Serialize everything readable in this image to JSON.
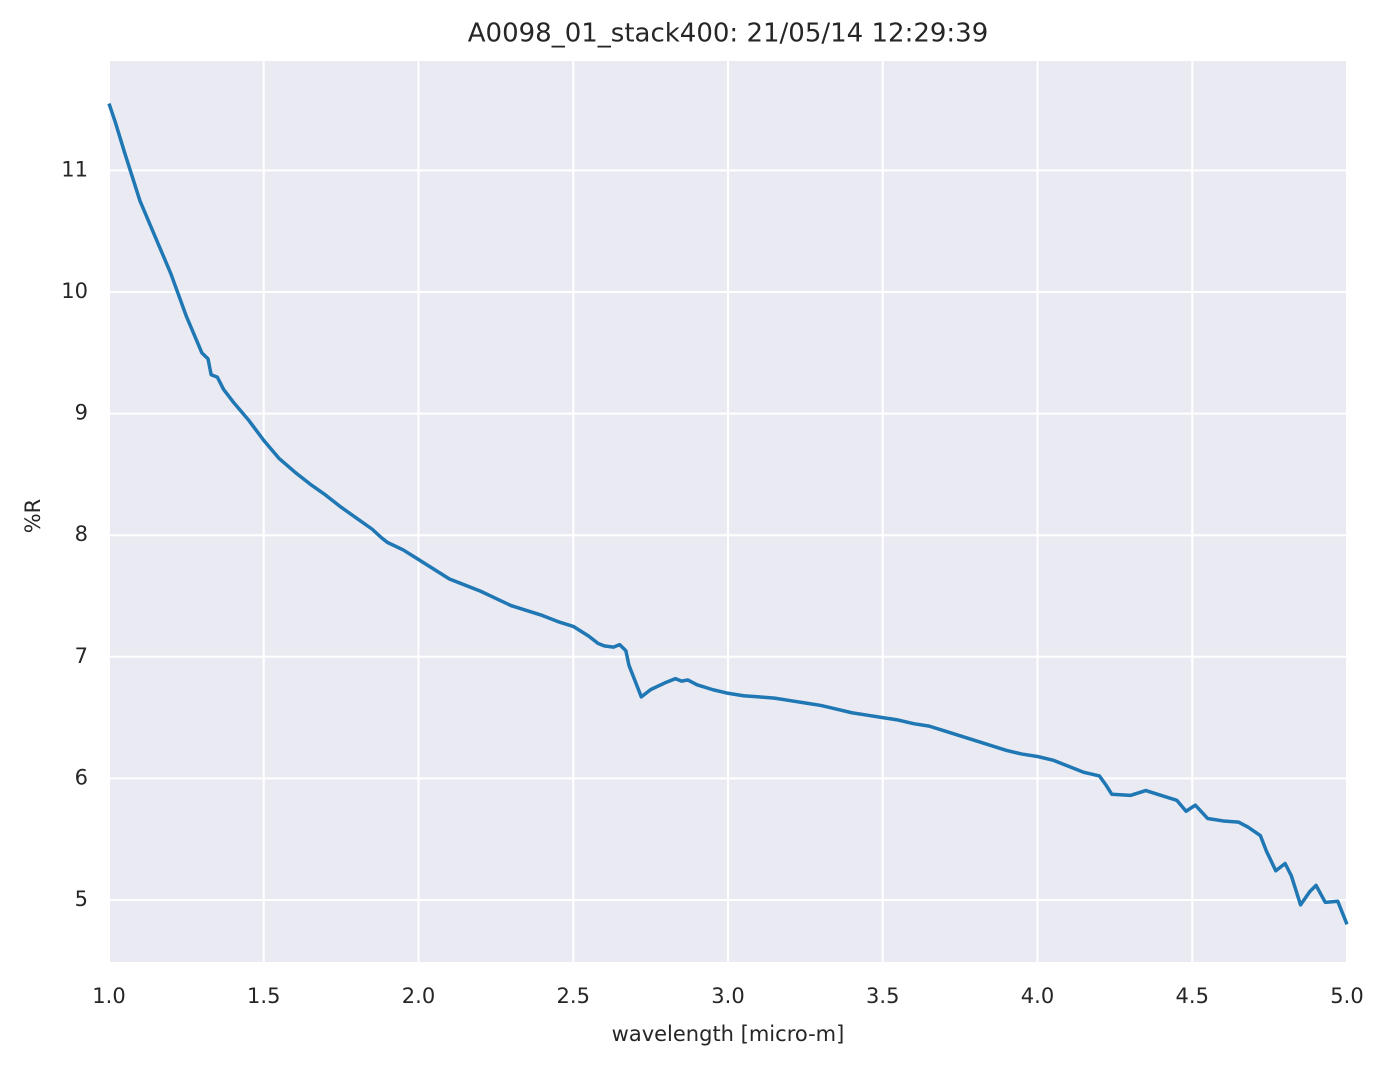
{
  "chart_data": {
    "type": "line",
    "title": "A0098_01_stack400:  21/05/14 12:29:39",
    "xlabel": "wavelength [micro-m]",
    "ylabel": "%R",
    "xlim": [
      1.0,
      5.0
    ],
    "ylim": [
      4.49,
      11.9
    ],
    "xticks": [
      {
        "value": 1.0,
        "label": "1.0"
      },
      1.5,
      {
        "value": 2.0,
        "label": "2.0"
      },
      2.5,
      {
        "value": 3.0,
        "label": "3.0"
      },
      3.5,
      {
        "value": 4.0,
        "label": "4.0"
      },
      4.5,
      {
        "value": 5.0,
        "label": "5.0"
      }
    ],
    "yticks": [
      5,
      6,
      7,
      8,
      9,
      10,
      11
    ],
    "grid": true,
    "background": "#eaeaf2",
    "series": [
      {
        "name": "A0098_01_stack400",
        "color": "#1f77b4",
        "x": [
          1.0,
          1.02,
          1.05,
          1.1,
          1.15,
          1.2,
          1.25,
          1.3,
          1.32,
          1.33,
          1.35,
          1.37,
          1.4,
          1.45,
          1.5,
          1.55,
          1.6,
          1.65,
          1.7,
          1.75,
          1.8,
          1.85,
          1.88,
          1.9,
          1.95,
          2.0,
          2.05,
          2.1,
          2.15,
          2.2,
          2.25,
          2.3,
          2.35,
          2.4,
          2.45,
          2.5,
          2.55,
          2.58,
          2.6,
          2.63,
          2.65,
          2.67,
          2.68,
          2.7,
          2.72,
          2.75,
          2.8,
          2.83,
          2.85,
          2.87,
          2.9,
          2.95,
          3.0,
          3.05,
          3.1,
          3.15,
          3.2,
          3.25,
          3.3,
          3.35,
          3.4,
          3.45,
          3.5,
          3.55,
          3.6,
          3.65,
          3.7,
          3.75,
          3.8,
          3.85,
          3.9,
          3.95,
          4.0,
          4.05,
          4.1,
          4.15,
          4.2,
          4.22,
          4.24,
          4.3,
          4.35,
          4.4,
          4.45,
          4.48,
          4.51,
          4.55,
          4.6,
          4.65,
          4.68,
          4.72,
          4.74,
          4.77,
          4.8,
          4.82,
          4.85,
          4.88,
          4.9,
          4.93,
          4.97,
          5.0
        ],
        "values": [
          11.55,
          11.4,
          11.15,
          10.75,
          10.45,
          10.15,
          9.8,
          9.5,
          9.45,
          9.32,
          9.3,
          9.2,
          9.1,
          8.95,
          8.78,
          8.63,
          8.52,
          8.42,
          8.33,
          8.23,
          8.14,
          8.05,
          7.98,
          7.94,
          7.88,
          7.8,
          7.72,
          7.64,
          7.59,
          7.54,
          7.48,
          7.42,
          7.38,
          7.34,
          7.29,
          7.25,
          7.17,
          7.11,
          7.09,
          7.08,
          7.1,
          7.05,
          6.93,
          6.8,
          6.67,
          6.73,
          6.79,
          6.82,
          6.8,
          6.81,
          6.77,
          6.73,
          6.7,
          6.68,
          6.67,
          6.66,
          6.64,
          6.62,
          6.6,
          6.57,
          6.54,
          6.52,
          6.5,
          6.48,
          6.45,
          6.43,
          6.39,
          6.35,
          6.31,
          6.27,
          6.23,
          6.2,
          6.18,
          6.15,
          6.1,
          6.05,
          6.02,
          5.95,
          5.87,
          5.86,
          5.9,
          5.86,
          5.82,
          5.73,
          5.78,
          5.67,
          5.65,
          5.64,
          5.6,
          5.53,
          5.4,
          5.24,
          5.3,
          5.2,
          4.96,
          5.07,
          5.12,
          4.98,
          4.99,
          4.8
        ]
      }
    ]
  }
}
